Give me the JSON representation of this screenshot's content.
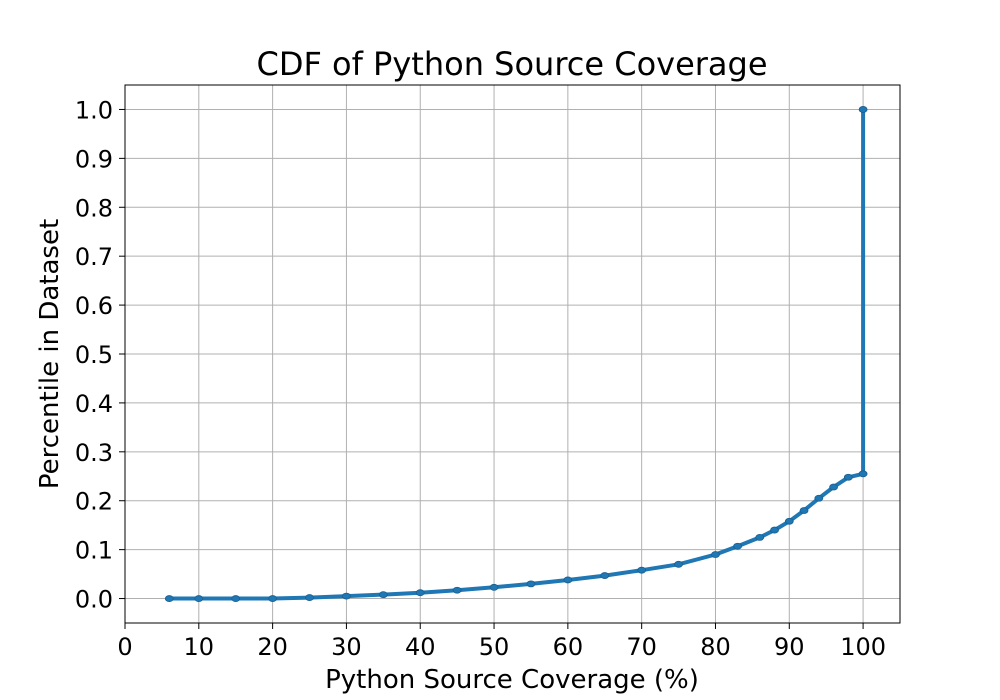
{
  "chart_data": {
    "type": "line",
    "title": "CDF of Python Source Coverage",
    "xlabel": "Python Source Coverage (%)",
    "ylabel": "Percentile in Dataset",
    "xlim": [
      0,
      105
    ],
    "ylim": [
      -0.05,
      1.05
    ],
    "xticks": [
      0,
      10,
      20,
      30,
      40,
      50,
      60,
      70,
      80,
      90,
      100
    ],
    "yticks": [
      0.0,
      0.1,
      0.2,
      0.3,
      0.4,
      0.5,
      0.6,
      0.7,
      0.8,
      0.9,
      1.0
    ],
    "xtick_labels": [
      "0",
      "10",
      "20",
      "30",
      "40",
      "50",
      "60",
      "70",
      "80",
      "90",
      "100"
    ],
    "ytick_labels": [
      "0.0",
      "0.1",
      "0.2",
      "0.3",
      "0.4",
      "0.5",
      "0.6",
      "0.7",
      "0.8",
      "0.9",
      "1.0"
    ],
    "grid": true,
    "legend": "none",
    "series_color": "#1f77b4",
    "series": [
      {
        "x": [
          6,
          10,
          15,
          20,
          25,
          30,
          35,
          40,
          45,
          50,
          55,
          60,
          65,
          70,
          75,
          80,
          83,
          86,
          88,
          90,
          92,
          94,
          96,
          98,
          100,
          100
        ],
        "y": [
          0.0,
          0.0,
          0.0,
          0.0,
          0.002,
          0.005,
          0.008,
          0.012,
          0.017,
          0.023,
          0.03,
          0.038,
          0.047,
          0.058,
          0.07,
          0.09,
          0.107,
          0.125,
          0.14,
          0.158,
          0.18,
          0.205,
          0.228,
          0.248,
          0.255,
          1.0
        ]
      }
    ]
  }
}
